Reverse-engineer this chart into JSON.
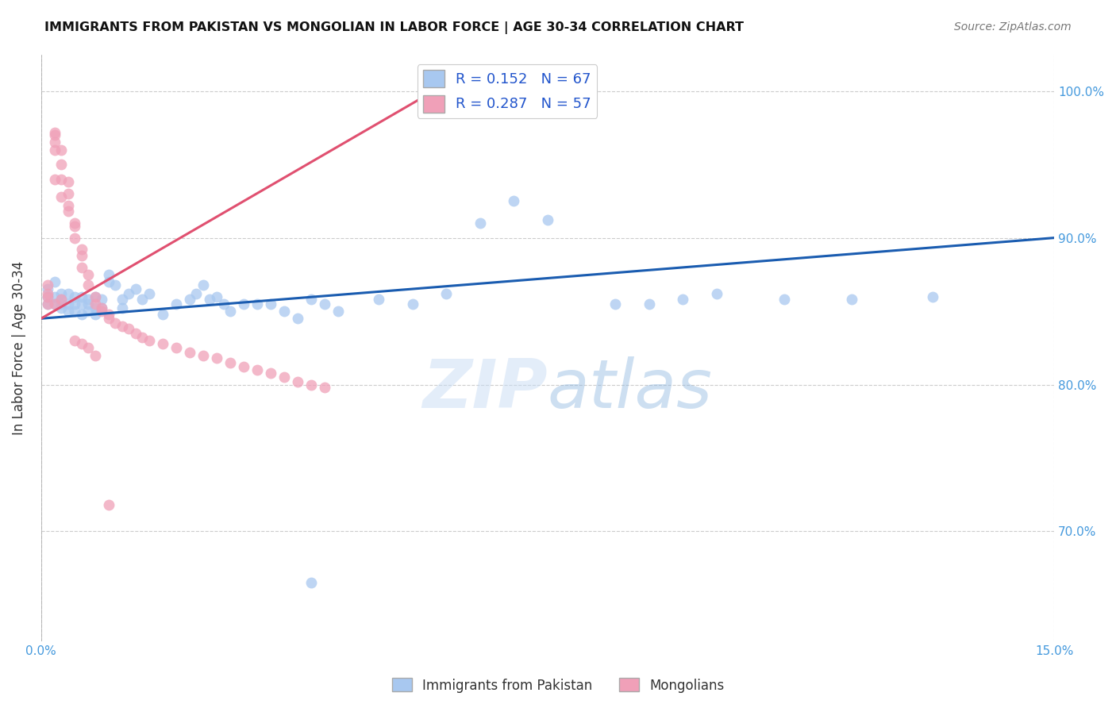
{
  "title": "IMMIGRANTS FROM PAKISTAN VS MONGOLIAN IN LABOR FORCE | AGE 30-34 CORRELATION CHART",
  "source": "Source: ZipAtlas.com",
  "ylabel": "In Labor Force | Age 30-34",
  "legend_label_blue": "Immigrants from Pakistan",
  "legend_label_pink": "Mongolians",
  "blue_R": 0.152,
  "blue_N": 67,
  "pink_R": 0.287,
  "pink_N": 57,
  "blue_color": "#A8C8F0",
  "pink_color": "#F0A0B8",
  "blue_line_color": "#1A5CB0",
  "pink_line_color": "#E05070",
  "watermark_zip": "ZIP",
  "watermark_atlas": "atlas",
  "xmin": 0.0,
  "xmax": 0.15,
  "ymin": 0.625,
  "ymax": 1.025,
  "ytick_vals": [
    0.7,
    0.8,
    0.9,
    1.0
  ],
  "ytick_labels": [
    "70.0%",
    "80.0%",
    "90.0%",
    "100.0%"
  ],
  "blue_line_x0": 0.0,
  "blue_line_y0": 0.845,
  "blue_line_x1": 0.15,
  "blue_line_y1": 0.9,
  "pink_line_x0": 0.0,
  "pink_line_y0": 0.845,
  "pink_line_x1": 0.06,
  "pink_line_y1": 1.005,
  "blue_scatter_x": [
    0.001,
    0.001,
    0.001,
    0.002,
    0.002,
    0.002,
    0.003,
    0.003,
    0.003,
    0.003,
    0.004,
    0.004,
    0.004,
    0.005,
    0.005,
    0.005,
    0.006,
    0.006,
    0.006,
    0.007,
    0.007,
    0.007,
    0.008,
    0.008,
    0.008,
    0.009,
    0.009,
    0.01,
    0.01,
    0.011,
    0.012,
    0.012,
    0.013,
    0.014,
    0.015,
    0.016,
    0.018,
    0.02,
    0.022,
    0.023,
    0.024,
    0.025,
    0.026,
    0.027,
    0.028,
    0.03,
    0.032,
    0.034,
    0.036,
    0.038,
    0.04,
    0.042,
    0.044,
    0.05,
    0.055,
    0.06,
    0.065,
    0.07,
    0.075,
    0.085,
    0.09,
    0.095,
    0.1,
    0.11,
    0.12,
    0.132,
    0.04
  ],
  "blue_scatter_y": [
    0.855,
    0.86,
    0.865,
    0.855,
    0.86,
    0.87,
    0.852,
    0.858,
    0.862,
    0.855,
    0.85,
    0.855,
    0.862,
    0.85,
    0.855,
    0.86,
    0.848,
    0.855,
    0.86,
    0.85,
    0.855,
    0.858,
    0.848,
    0.852,
    0.86,
    0.852,
    0.858,
    0.87,
    0.875,
    0.868,
    0.852,
    0.858,
    0.862,
    0.865,
    0.858,
    0.862,
    0.848,
    0.855,
    0.858,
    0.862,
    0.868,
    0.858,
    0.86,
    0.855,
    0.85,
    0.855,
    0.855,
    0.855,
    0.85,
    0.845,
    0.858,
    0.855,
    0.85,
    0.858,
    0.855,
    0.862,
    0.91,
    0.925,
    0.912,
    0.855,
    0.855,
    0.858,
    0.862,
    0.858,
    0.858,
    0.86,
    0.665
  ],
  "pink_scatter_x": [
    0.001,
    0.001,
    0.001,
    0.001,
    0.002,
    0.002,
    0.002,
    0.002,
    0.002,
    0.003,
    0.003,
    0.003,
    0.003,
    0.004,
    0.004,
    0.004,
    0.004,
    0.005,
    0.005,
    0.005,
    0.006,
    0.006,
    0.006,
    0.007,
    0.007,
    0.008,
    0.008,
    0.009,
    0.009,
    0.01,
    0.01,
    0.011,
    0.012,
    0.013,
    0.014,
    0.015,
    0.016,
    0.018,
    0.02,
    0.022,
    0.024,
    0.026,
    0.028,
    0.03,
    0.032,
    0.034,
    0.036,
    0.038,
    0.04,
    0.042,
    0.002,
    0.003,
    0.005,
    0.006,
    0.007,
    0.008,
    0.01
  ],
  "pink_scatter_y": [
    0.855,
    0.86,
    0.862,
    0.868,
    0.965,
    0.97,
    0.972,
    0.96,
    0.94,
    0.96,
    0.95,
    0.94,
    0.928,
    0.938,
    0.93,
    0.922,
    0.918,
    0.91,
    0.908,
    0.9,
    0.892,
    0.888,
    0.88,
    0.875,
    0.868,
    0.86,
    0.855,
    0.852,
    0.85,
    0.848,
    0.845,
    0.842,
    0.84,
    0.838,
    0.835,
    0.832,
    0.83,
    0.828,
    0.825,
    0.822,
    0.82,
    0.818,
    0.815,
    0.812,
    0.81,
    0.808,
    0.805,
    0.802,
    0.8,
    0.798,
    0.855,
    0.858,
    0.83,
    0.828,
    0.825,
    0.82,
    0.718
  ]
}
